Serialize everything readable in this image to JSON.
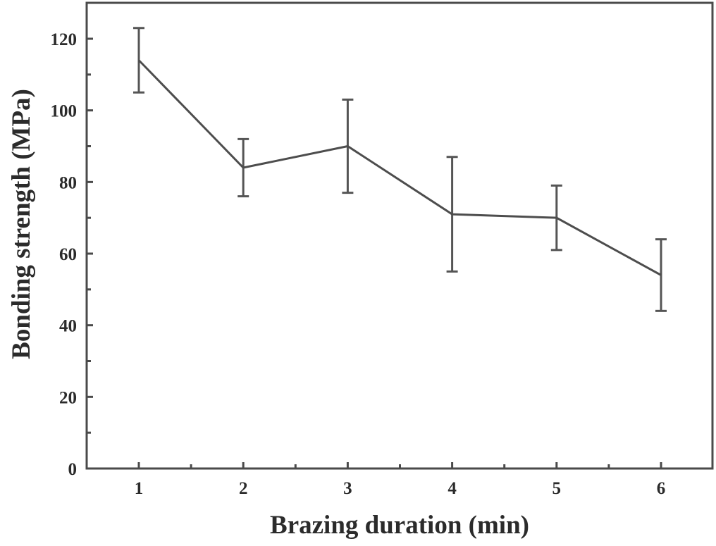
{
  "chart_data": {
    "type": "line",
    "title": "",
    "xlabel": "Brazing duration (min)",
    "ylabel": "Bonding strength (MPa)",
    "x": [
      1,
      2,
      3,
      4,
      5,
      6
    ],
    "categories": [
      "1",
      "2",
      "3",
      "4",
      "5",
      "6"
    ],
    "series": [
      {
        "name": "Bonding strength",
        "values": [
          114,
          84,
          90,
          71,
          70,
          54
        ],
        "error_upper": [
          123,
          92,
          103,
          87,
          79,
          64
        ],
        "error_lower": [
          105,
          76,
          77,
          55,
          61,
          44
        ],
        "color": "#4d4d4d"
      }
    ],
    "xlim": [
      0.5,
      6.5
    ],
    "ylim": [
      0,
      130
    ],
    "x_ticks": [
      "1",
      "2",
      "3",
      "4",
      "5",
      "6"
    ],
    "y_ticks": [
      "0",
      "20",
      "40",
      "60",
      "80",
      "100",
      "120"
    ],
    "grid": false,
    "legend": null
  }
}
